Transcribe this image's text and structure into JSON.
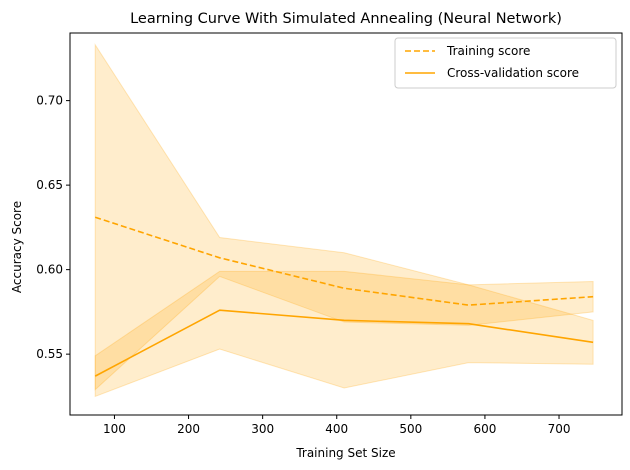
{
  "chart_data": {
    "type": "line",
    "title": "Learning Curve With Simulated Annealing (Neural Network)",
    "xlabel": "Training Set Size",
    "ylabel": "Accuracy Score",
    "xlim": [
      40,
      785
    ],
    "ylim": [
      0.514,
      0.74
    ],
    "xticks": [
      100,
      200,
      300,
      400,
      500,
      600,
      700
    ],
    "yticks": [
      0.55,
      0.6,
      0.65,
      0.7
    ],
    "ytick_labels": [
      "0.55",
      "0.60",
      "0.65",
      "0.70"
    ],
    "grid": false,
    "legend_position": "top-right",
    "color": "#FFA500",
    "x": [
      74,
      242,
      410,
      578,
      746
    ],
    "series": [
      {
        "name": "Training score",
        "style": "dashed",
        "values": [
          0.631,
          0.607,
          0.589,
          0.579,
          0.584
        ],
        "band_low": [
          0.529,
          0.596,
          0.569,
          0.567,
          0.575
        ],
        "band_high": [
          0.733,
          0.619,
          0.61,
          0.591,
          0.593
        ]
      },
      {
        "name": "Cross-validation score",
        "style": "solid",
        "values": [
          0.537,
          0.576,
          0.57,
          0.568,
          0.557
        ],
        "band_low": [
          0.525,
          0.553,
          0.53,
          0.545,
          0.544
        ],
        "band_high": [
          0.549,
          0.599,
          0.599,
          0.591,
          0.57
        ]
      }
    ]
  }
}
